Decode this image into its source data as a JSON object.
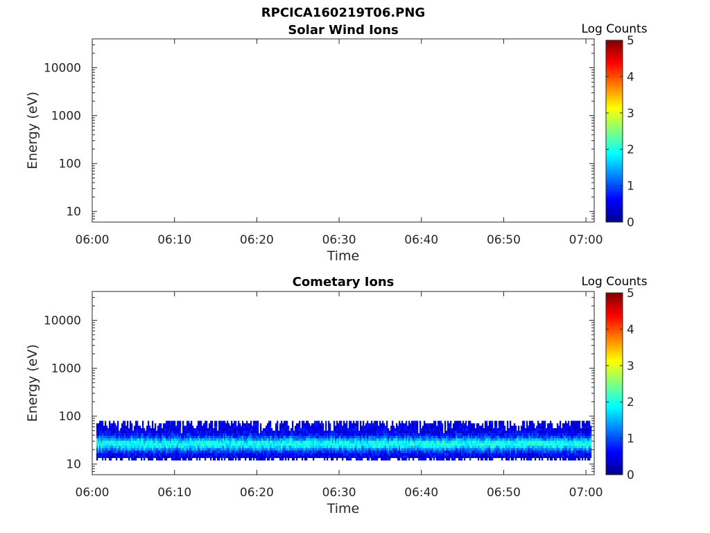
{
  "figure": {
    "filename": "RPCICA160219T06.PNG"
  },
  "colors": {
    "colormap": [
      "#00008f",
      "#0000ff",
      "#0080ff",
      "#00ffff",
      "#80ff80",
      "#ffff00",
      "#ff8000",
      "#ff0000",
      "#800000"
    ],
    "axis": "#262626",
    "background": "#ffffff"
  },
  "chart_data": [
    {
      "type": "heatmap",
      "title": "Solar Wind Ions",
      "xlabel": "Time",
      "ylabel": "Energy (eV)",
      "x_ticks": [
        "06:00",
        "06:10",
        "06:20",
        "06:30",
        "06:40",
        "06:50",
        "07:00"
      ],
      "y_ticks": [
        "10",
        "100",
        "1000",
        "10000"
      ],
      "y_scale": "log",
      "xlim": [
        "06:00",
        "07:01"
      ],
      "ylim": [
        6,
        40000
      ],
      "colorbar": {
        "label": "Log Counts",
        "ticks": [
          "0",
          "1",
          "2",
          "3",
          "4",
          "5"
        ],
        "range": [
          0,
          5
        ]
      },
      "data": []
    },
    {
      "type": "heatmap",
      "title": "Cometary Ions",
      "xlabel": "Time",
      "ylabel": "Energy (eV)",
      "x_ticks": [
        "06:00",
        "06:10",
        "06:20",
        "06:30",
        "06:40",
        "06:50",
        "07:00"
      ],
      "y_ticks": [
        "10",
        "100",
        "1000",
        "10000"
      ],
      "y_scale": "log",
      "xlim": [
        "06:00",
        "07:01"
      ],
      "ylim": [
        6,
        40000
      ],
      "colorbar": {
        "label": "Log Counts",
        "ticks": [
          "0",
          "1",
          "2",
          "3",
          "4",
          "5"
        ],
        "range": [
          0,
          5
        ]
      },
      "data": {
        "time_range": [
          "06:00:30",
          "07:00:30"
        ],
        "energy_range_eV": [
          12,
          80
        ],
        "peak_energy_eV": [
          20,
          35
        ],
        "peak_log_counts": 2.0,
        "typical_log_counts": 0.5
      }
    }
  ]
}
